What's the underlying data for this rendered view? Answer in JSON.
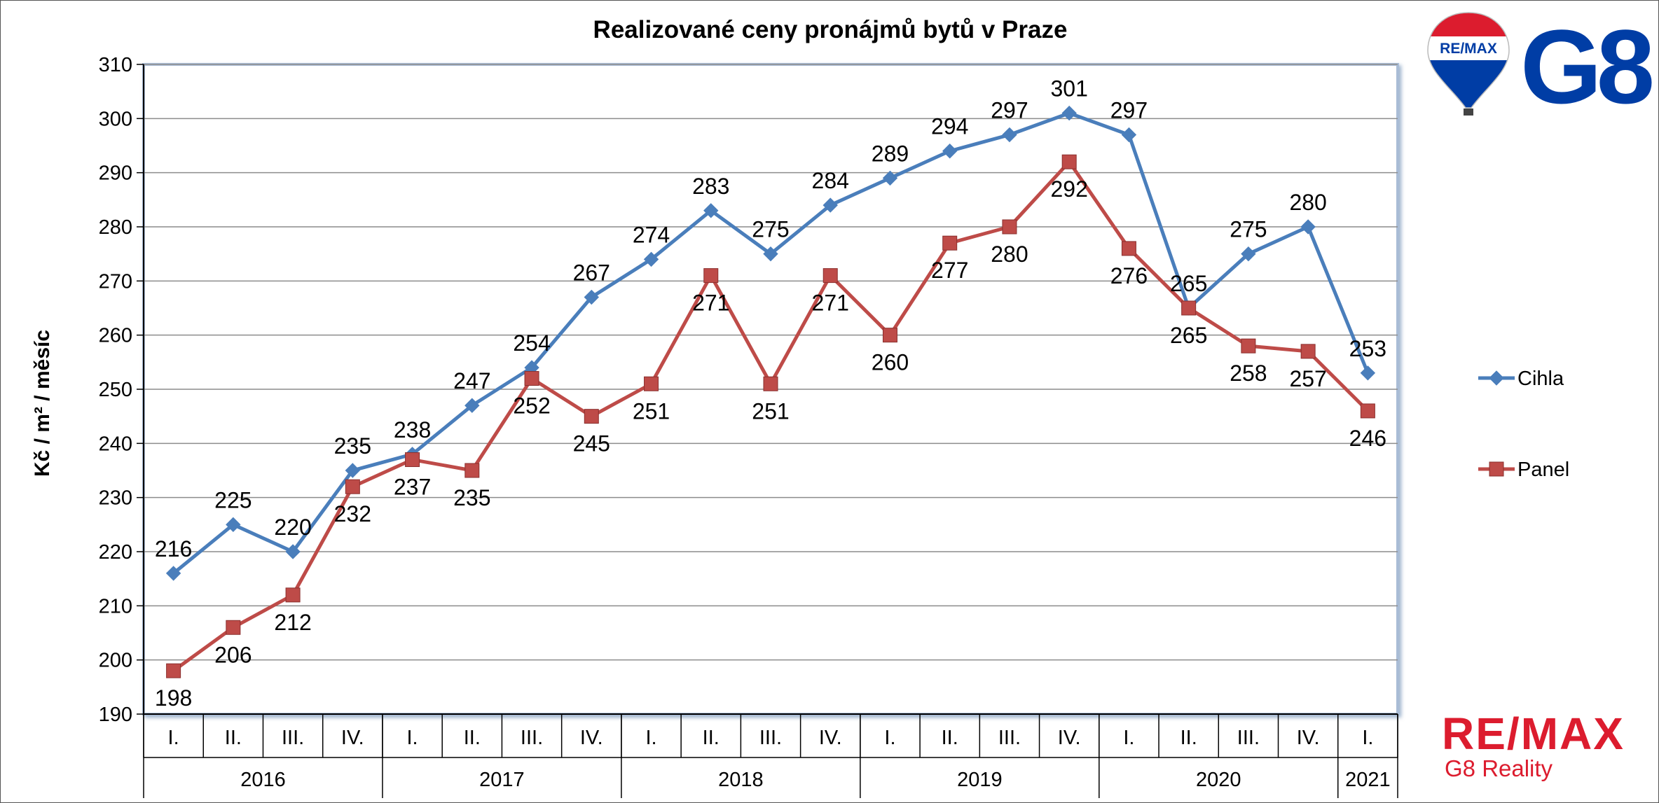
{
  "chart_data": {
    "type": "line",
    "title": "Realizované ceny pronájmů bytů v Praze",
    "ylabel": "Kč / m² / měsíc",
    "xlabel": "",
    "ylim": [
      190,
      310
    ],
    "ytick_step": 10,
    "grid": true,
    "legend_position": "right",
    "quarters": [
      "I.",
      "II.",
      "III.",
      "IV.",
      "I.",
      "II.",
      "III.",
      "IV.",
      "I.",
      "II.",
      "III.",
      "IV.",
      "I.",
      "II.",
      "III.",
      "IV.",
      "I.",
      "II.",
      "III.",
      "IV.",
      "I."
    ],
    "years": [
      {
        "label": "2016",
        "quarters": 4
      },
      {
        "label": "2017",
        "quarters": 4
      },
      {
        "label": "2018",
        "quarters": 4
      },
      {
        "label": "2019",
        "quarters": 4
      },
      {
        "label": "2020",
        "quarters": 4
      },
      {
        "label": "2021",
        "quarters": 1
      }
    ],
    "series": [
      {
        "name": "Cihla",
        "color": "#4a7ebb",
        "marker": "diamond",
        "values": [
          216,
          225,
          220,
          235,
          238,
          247,
          254,
          267,
          274,
          283,
          275,
          284,
          289,
          294,
          297,
          301,
          297,
          265,
          275,
          280,
          253
        ],
        "labels": [
          "216",
          "225",
          "220",
          "235",
          "238",
          "247",
          "254",
          "267",
          "274",
          "283",
          "275",
          "284",
          "289",
          "294",
          "297",
          "301",
          "297",
          "265",
          "275",
          "280",
          "253"
        ]
      },
      {
        "name": "Panel",
        "color": "#be4b48",
        "marker": "square",
        "values": [
          198,
          206,
          212,
          232,
          237,
          235,
          252,
          245,
          251,
          271,
          251,
          271,
          260,
          277,
          280,
          292,
          276,
          265,
          258,
          257,
          246
        ],
        "labels": [
          "198",
          "206",
          "212",
          "232",
          "237",
          "235",
          "252",
          "245",
          "251",
          "271",
          "251",
          "271",
          "260",
          "277",
          "280",
          "292",
          "276",
          "265",
          "258",
          "257",
          "246"
        ]
      }
    ]
  },
  "logos": {
    "balloon_text": "RE/MAX",
    "g8_text": "G8",
    "brand_name": "RE/MAX",
    "brand_sub": "G8 Reality",
    "colors": {
      "red": "#dc1c2e",
      "blue": "#003da5"
    }
  }
}
